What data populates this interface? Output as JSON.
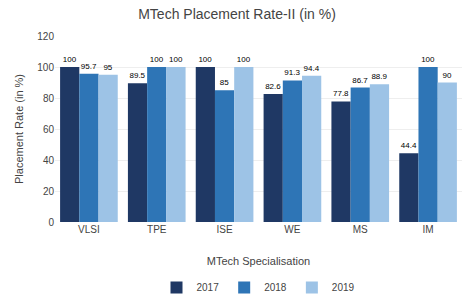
{
  "chart_data": {
    "type": "bar",
    "title": "MTech Placement Rate-II (in %)",
    "xlabel": "MTech Specialisation",
    "ylabel": "Placement Rate (in %)",
    "categories": [
      "VLSI",
      "TPE",
      "ISE",
      "WE",
      "MS",
      "IM"
    ],
    "series": [
      {
        "name": "2017",
        "color": "#1F3864",
        "values": [
          100,
          89.5,
          100,
          82.6,
          77.8,
          44.4
        ]
      },
      {
        "name": "2018",
        "color": "#2E75B6",
        "values": [
          95.7,
          100,
          85,
          91.3,
          86.7,
          100
        ]
      },
      {
        "name": "2019",
        "color": "#9DC3E6",
        "values": [
          95,
          100,
          100,
          94.4,
          88.9,
          90
        ]
      }
    ],
    "ylim": [
      0,
      120
    ],
    "yticks": [
      0,
      20,
      40,
      60,
      80,
      100,
      120
    ],
    "grid": true,
    "legend": "bottom",
    "data_labels": true
  }
}
